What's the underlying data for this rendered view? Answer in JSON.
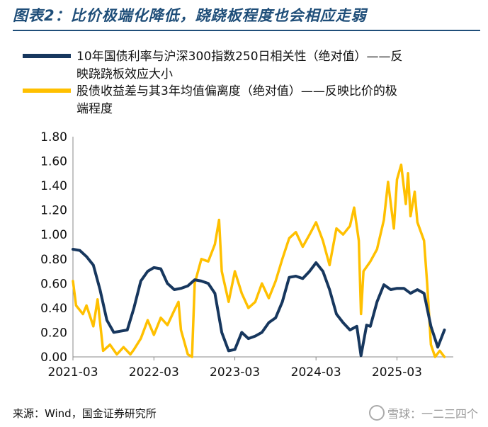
{
  "title": "图表2：比价极端化降低，跷跷板程度也会相应走弱",
  "source": "来源：Wind，国金证券研究所",
  "watermark": "雪球：一二三四个",
  "chart_data": {
    "type": "line",
    "ylim": [
      0,
      1.8
    ],
    "yticks": [
      "0.00",
      "0.20",
      "0.40",
      "0.60",
      "0.80",
      "1.00",
      "1.20",
      "1.40",
      "1.60",
      "1.80"
    ],
    "xticks": [
      "2021-03",
      "2022-03",
      "2023-03",
      "2024-03",
      "2025-03"
    ],
    "grid": false,
    "legend_position": "top",
    "series": [
      {
        "name": "10年国债利率与沪深300指数250日相关性（绝对值）——反映跷跷板效应大小",
        "color": "#17375e",
        "points": [
          [
            "2021-03-01",
            0.88
          ],
          [
            "2021-04-01",
            0.87
          ],
          [
            "2021-05-01",
            0.82
          ],
          [
            "2021-06-01",
            0.75
          ],
          [
            "2021-07-01",
            0.55
          ],
          [
            "2021-08-01",
            0.3
          ],
          [
            "2021-09-01",
            0.2
          ],
          [
            "2021-10-01",
            0.21
          ],
          [
            "2021-11-01",
            0.22
          ],
          [
            "2021-12-01",
            0.4
          ],
          [
            "2022-01-01",
            0.62
          ],
          [
            "2022-02-01",
            0.7
          ],
          [
            "2022-03-01",
            0.73
          ],
          [
            "2022-04-01",
            0.72
          ],
          [
            "2022-05-01",
            0.6
          ],
          [
            "2022-06-01",
            0.55
          ],
          [
            "2022-07-01",
            0.56
          ],
          [
            "2022-08-01",
            0.58
          ],
          [
            "2022-09-01",
            0.63
          ],
          [
            "2022-10-01",
            0.62
          ],
          [
            "2022-11-01",
            0.6
          ],
          [
            "2022-12-01",
            0.52
          ],
          [
            "2023-01-01",
            0.2
          ],
          [
            "2023-02-01",
            0.05
          ],
          [
            "2023-03-01",
            0.06
          ],
          [
            "2023-04-01",
            0.2
          ],
          [
            "2023-05-01",
            0.15
          ],
          [
            "2023-06-01",
            0.17
          ],
          [
            "2023-07-01",
            0.2
          ],
          [
            "2023-08-01",
            0.28
          ],
          [
            "2023-09-01",
            0.32
          ],
          [
            "2023-10-01",
            0.45
          ],
          [
            "2023-11-01",
            0.65
          ],
          [
            "2023-12-01",
            0.66
          ],
          [
            "2024-01-01",
            0.64
          ],
          [
            "2024-02-01",
            0.7
          ],
          [
            "2024-03-01",
            0.77
          ],
          [
            "2024-04-01",
            0.7
          ],
          [
            "2024-05-01",
            0.55
          ],
          [
            "2024-06-01",
            0.35
          ],
          [
            "2024-07-01",
            0.28
          ],
          [
            "2024-08-01",
            0.22
          ],
          [
            "2024-09-01",
            0.25
          ],
          [
            "2024-09-20",
            0.01
          ],
          [
            "2024-10-15",
            0.26
          ],
          [
            "2024-11-01",
            0.25
          ],
          [
            "2024-12-01",
            0.45
          ],
          [
            "2025-01-01",
            0.59
          ],
          [
            "2025-02-01",
            0.55
          ],
          [
            "2025-03-01",
            0.56
          ],
          [
            "2025-04-01",
            0.56
          ],
          [
            "2025-05-01",
            0.52
          ],
          [
            "2025-06-01",
            0.55
          ],
          [
            "2025-07-01",
            0.52
          ],
          [
            "2025-08-01",
            0.25
          ],
          [
            "2025-09-01",
            0.08
          ],
          [
            "2025-10-01",
            0.22
          ]
        ]
      },
      {
        "name": "股债收益差与其3年均值偏离度（绝对值）——反映比价的极端程度",
        "color": "#ffc000",
        "points": [
          [
            "2021-03-01",
            0.62
          ],
          [
            "2021-03-15",
            0.42
          ],
          [
            "2021-04-15",
            0.35
          ],
          [
            "2021-05-01",
            0.42
          ],
          [
            "2021-06-01",
            0.25
          ],
          [
            "2021-06-20",
            0.47
          ],
          [
            "2021-07-15",
            0.05
          ],
          [
            "2021-08-15",
            0.1
          ],
          [
            "2021-09-15",
            0.02
          ],
          [
            "2021-10-15",
            0.08
          ],
          [
            "2021-11-15",
            0.02
          ],
          [
            "2021-12-01",
            0.06
          ],
          [
            "2022-01-01",
            0.15
          ],
          [
            "2022-02-01",
            0.3
          ],
          [
            "2022-03-01",
            0.18
          ],
          [
            "2022-04-01",
            0.32
          ],
          [
            "2022-05-01",
            0.26
          ],
          [
            "2022-06-01",
            0.38
          ],
          [
            "2022-06-20",
            0.45
          ],
          [
            "2022-07-01",
            0.22
          ],
          [
            "2022-08-01",
            0.02
          ],
          [
            "2022-08-20",
            0.0
          ],
          [
            "2022-09-01",
            0.6
          ],
          [
            "2022-10-01",
            0.8
          ],
          [
            "2022-11-01",
            0.78
          ],
          [
            "2022-12-01",
            0.92
          ],
          [
            "2022-12-20",
            1.12
          ],
          [
            "2023-01-01",
            0.7
          ],
          [
            "2023-02-01",
            0.45
          ],
          [
            "2023-03-01",
            0.7
          ],
          [
            "2023-04-01",
            0.52
          ],
          [
            "2023-05-01",
            0.4
          ],
          [
            "2023-06-01",
            0.45
          ],
          [
            "2023-07-01",
            0.6
          ],
          [
            "2023-08-01",
            0.48
          ],
          [
            "2023-09-01",
            0.62
          ],
          [
            "2023-10-01",
            0.8
          ],
          [
            "2023-11-01",
            0.97
          ],
          [
            "2023-12-01",
            1.02
          ],
          [
            "2024-01-01",
            0.9
          ],
          [
            "2024-02-01",
            1.0
          ],
          [
            "2024-03-01",
            1.1
          ],
          [
            "2024-04-01",
            0.95
          ],
          [
            "2024-05-01",
            0.75
          ],
          [
            "2024-06-01",
            1.05
          ],
          [
            "2024-07-01",
            1.0
          ],
          [
            "2024-08-01",
            1.07
          ],
          [
            "2024-08-20",
            1.22
          ],
          [
            "2024-09-10",
            0.95
          ],
          [
            "2024-09-20",
            0.35
          ],
          [
            "2024-10-01",
            0.7
          ],
          [
            "2024-11-01",
            0.78
          ],
          [
            "2024-12-01",
            0.88
          ],
          [
            "2025-01-01",
            1.12
          ],
          [
            "2025-01-20",
            1.43
          ],
          [
            "2025-02-15",
            1.05
          ],
          [
            "2025-03-01",
            1.45
          ],
          [
            "2025-03-20",
            1.57
          ],
          [
            "2025-04-10",
            1.25
          ],
          [
            "2025-04-20",
            1.5
          ],
          [
            "2025-05-01",
            1.15
          ],
          [
            "2025-05-20",
            1.35
          ],
          [
            "2025-06-01",
            1.1
          ],
          [
            "2025-07-01",
            0.95
          ],
          [
            "2025-07-15",
            0.6
          ],
          [
            "2025-08-01",
            0.1
          ],
          [
            "2025-08-20",
            0.0
          ],
          [
            "2025-09-10",
            0.05
          ],
          [
            "2025-10-01",
            0.0
          ]
        ]
      }
    ]
  }
}
